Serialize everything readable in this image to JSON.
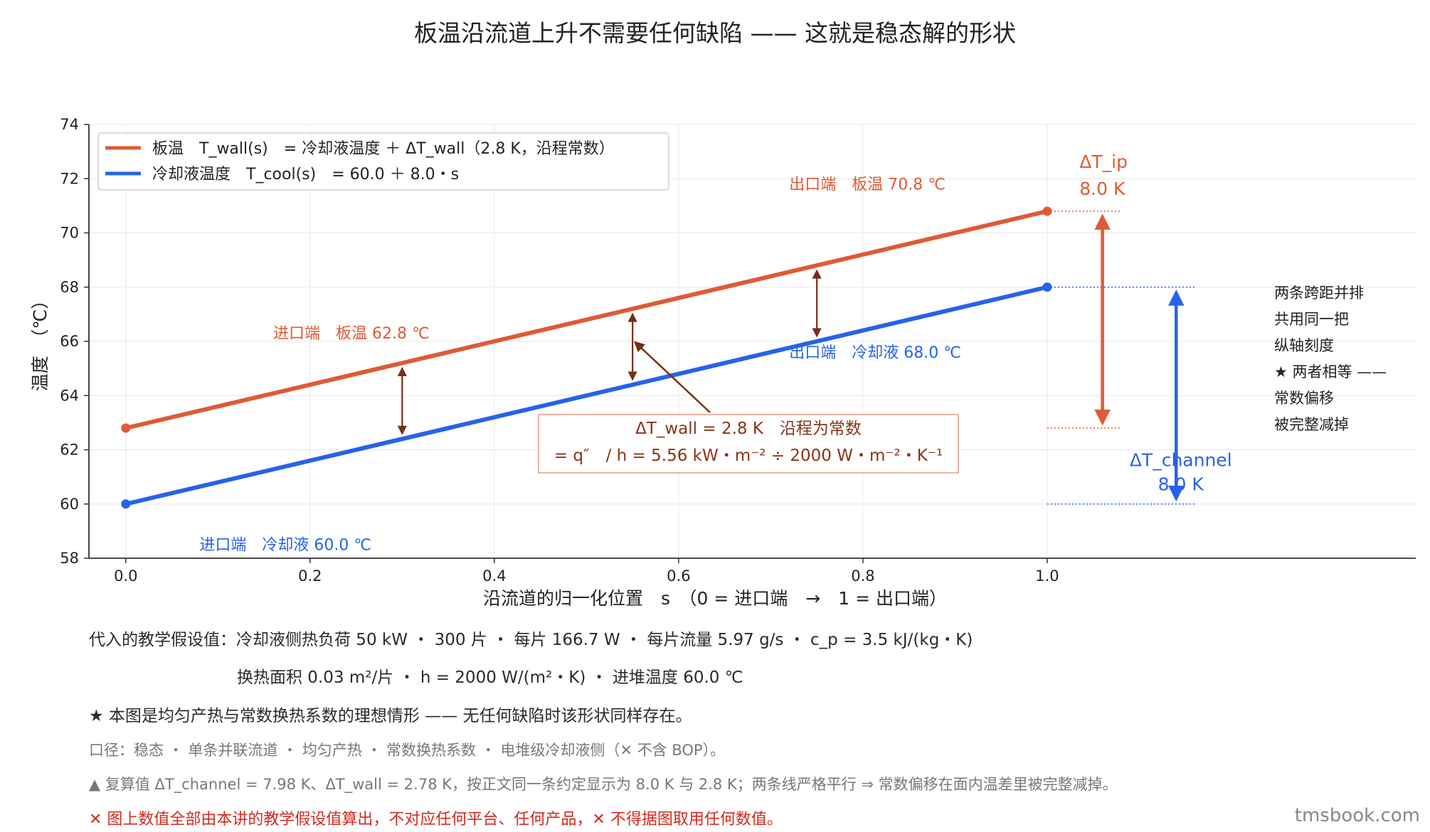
{
  "chart_data": {
    "type": "line",
    "title": "板温沿流道上升不需要任何缺陷 —— 这就是稳态解的形状",
    "xlabel": "沿流道的归一化位置　s　（0 = 进口端　→　1 = 出口端）",
    "ylabel": "温度　（℃）",
    "xlim": [
      -0.04,
      1.4
    ],
    "ylim": [
      58,
      74
    ],
    "x_ticks": [
      "0.0",
      "0.2",
      "0.4",
      "0.6",
      "0.8",
      "1.0"
    ],
    "y_ticks": [
      "58",
      "60",
      "62",
      "64",
      "66",
      "68",
      "70",
      "72",
      "74"
    ],
    "grid": true,
    "legend_position": "top-left",
    "series": [
      {
        "name": "板温　T_wall(s)　= 冷却液温度 ＋ ΔT_wall（2.8 K，沿程常数）",
        "color": "#e05a33",
        "x": [
          0.0,
          1.0
        ],
        "y": [
          62.8,
          70.8
        ]
      },
      {
        "name": "冷却液温度　T_cool(s)　= 60.0 ＋ 8.0・s",
        "color": "#2563eb",
        "x": [
          0.0,
          1.0
        ],
        "y": [
          60.0,
          68.0
        ]
      }
    ],
    "annotations": {
      "wall_inlet": "进口端　板温 62.8 ℃",
      "wall_outlet": "出口端　板温 70.8 ℃",
      "cool_inlet": "进口端　冷却液 60.0 ℃",
      "cool_outlet": "出口端　冷却液 68.0 ℃",
      "dt_ip_label": "ΔT_ip",
      "dt_ip_value": "8.0 K",
      "dt_channel_label": "ΔT_channel",
      "dt_channel_value": "8.0 K",
      "callout_line1": "ΔT_wall = 2.8 K　沿程为常数",
      "callout_line2": "= q″　/ h = 5.56 kW・m⁻² ÷ 2000 W・m⁻²・K⁻¹",
      "side_note": [
        "两条跨距并排",
        "共用同一把",
        "纵轴刻度",
        "★ 两者相等 ——",
        "常数偏移",
        "被完整减掉"
      ],
      "gap_arrows_x": [
        0.3,
        0.55,
        0.75
      ]
    }
  },
  "notes": {
    "line1": "代入的教学假设值：冷却液侧热负荷 50 kW ・ 300 片 ・ 每片 166.7 W ・ 每片流量 5.97 g/s ・ c_p = 3.5 kJ/(kg・K)",
    "line2": "换热面积 0.03 m²/片 ・ h = 2000 W/(m²・K) ・ 进堆温度 60.0 ℃",
    "line3": "★ 本图是均匀产热与常数换热系数的理想情形 —— 无任何缺陷时该形状同样存在。",
    "line4": "口径：稳态 ・ 单条并联流道 ・ 均匀产热 ・ 常数换热系数 ・ 电堆级冷却液侧（✕ 不含 BOP）。",
    "line5": "▲ 复算值 ΔT_channel = 7.98 K、ΔT_wall = 2.78 K，按正文同一条约定显示为 8.0 K 与 2.8 K；两条线严格平行 ⇒ 常数偏移在面内温差里被完整减掉。",
    "line6": "✕ 图上数值全部由本讲的教学假设值算出，不对应任何平台、任何产品，✕ 不得据图取用任何数值。"
  },
  "watermark": "tmsbook.com",
  "colors": {
    "wall": "#e05a33",
    "cool": "#2563eb",
    "callout": "#8b3318",
    "grid": "#e8e8e8"
  }
}
